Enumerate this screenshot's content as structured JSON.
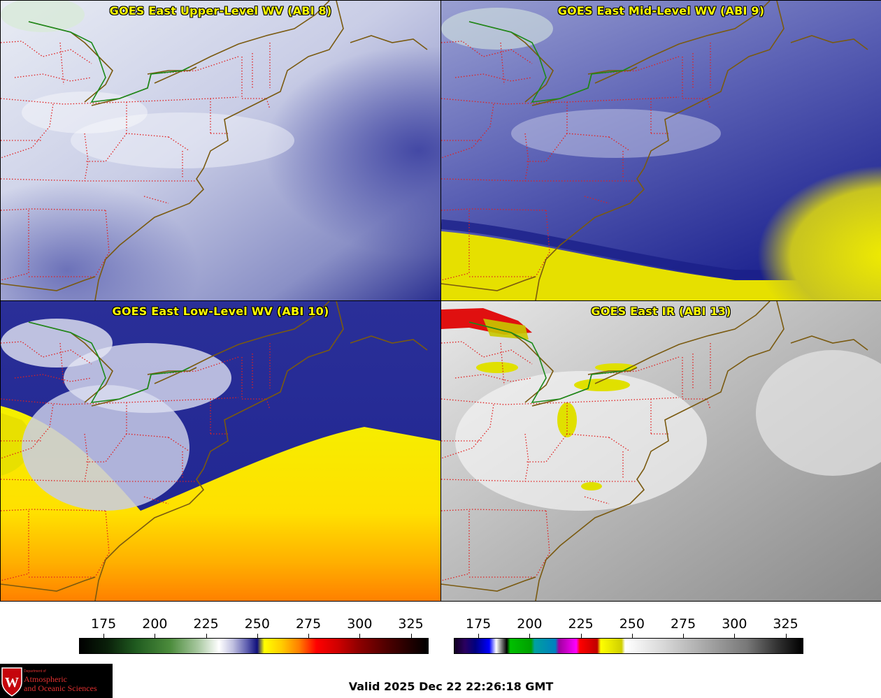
{
  "panels": [
    {
      "title": "GOES East Upper-Level WV (ABI 8)",
      "scheme": "wv-upper"
    },
    {
      "title": "GOES East Mid-Level WV (ABI 9)",
      "scheme": "wv-mid"
    },
    {
      "title": "GOES East Low-Level WV (ABI 10)",
      "scheme": "wv-low"
    },
    {
      "title": "GOES East IR (ABI 13)",
      "scheme": "ir"
    }
  ],
  "colorbars": {
    "wv": {
      "ticks": [
        "175",
        "200",
        "225",
        "250",
        "275",
        "300",
        "325"
      ],
      "tick_values": [
        175,
        200,
        225,
        250,
        275,
        300,
        325
      ],
      "range": [
        163,
        333
      ]
    },
    "ir": {
      "ticks": [
        "175",
        "200",
        "225",
        "250",
        "275",
        "300",
        "325"
      ],
      "tick_values": [
        175,
        200,
        225,
        250,
        275,
        300,
        325
      ],
      "range": [
        163,
        333
      ]
    }
  },
  "footer": {
    "valid_time": "Valid 2025 Dec 22 22:26:18 GMT"
  },
  "logo": {
    "dept": "Department of",
    "line1": "Atmospheric",
    "line2": "and Oceanic Sciences",
    "shield_letter": "W"
  },
  "colors": {
    "state_border": "#e02020",
    "coastline": "#7a5a10",
    "international_border": "#1a8a1a",
    "title_text": "#ffff00"
  },
  "icons": [
    "uw-shield-icon"
  ]
}
